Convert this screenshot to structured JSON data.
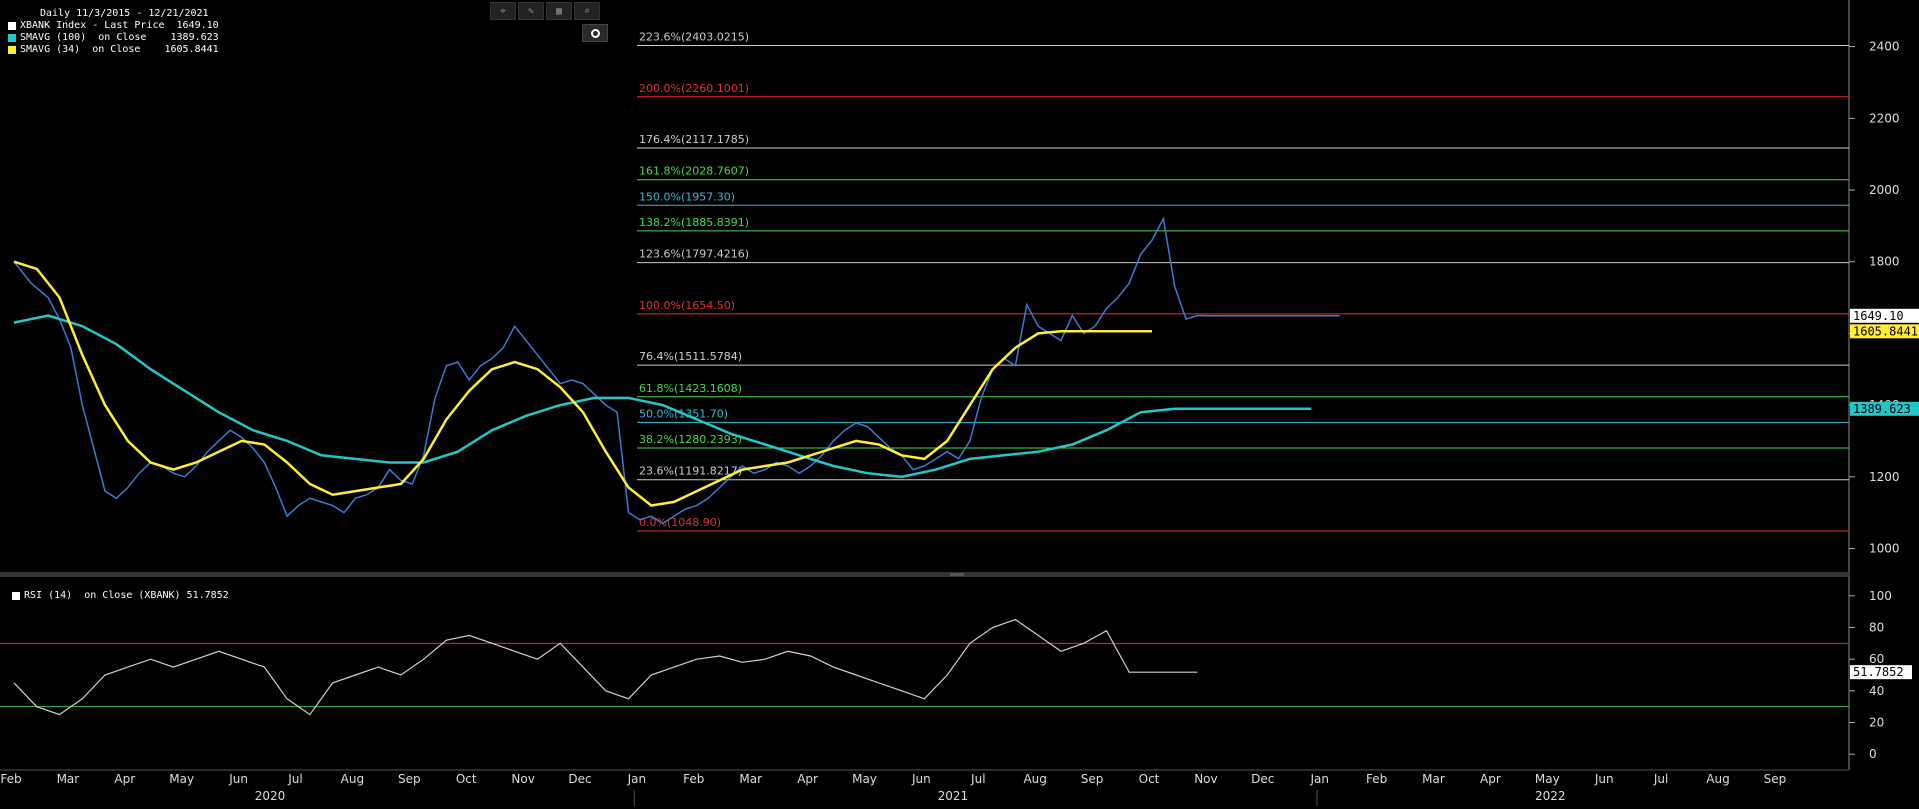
{
  "legend": {
    "title": "Daily 11/3/2015 - 12/21/2021",
    "items": [
      {
        "color": "#ffffff",
        "label": "XBANK Index - Last Price  1649.10"
      },
      {
        "color": "#22c7c9",
        "label": "SMAVG (100)  on Close    1389.623"
      },
      {
        "color": "#ffee33",
        "label": "SMAVG (34)  on Close    1605.8441"
      }
    ]
  },
  "toolbar": {
    "icons": [
      "crosshair-icon",
      "pen-icon",
      "chart-grid-icon",
      "magnifier-icon"
    ],
    "glyphs": [
      "⌖",
      "✎",
      "▦",
      "⌕"
    ],
    "camera_icon": "camera-icon"
  },
  "rsi_legend": "RSI (14)  on Close (XBANK) 51.7852",
  "chart_data": {
    "type": "line",
    "panels": [
      {
        "name": "price",
        "ylim": [
          940,
          2530
        ],
        "yticks": [
          1000,
          1200,
          1400,
          1600,
          1800,
          2000,
          2200,
          2400
        ],
        "price_labels": [
          {
            "value": 1649.1,
            "text": "1649.10",
            "bg": "#ffffff",
            "fg": "#000000"
          },
          {
            "value": 1605.8441,
            "text": "1605.8441",
            "bg": "#ffee33",
            "fg": "#000000"
          },
          {
            "value": 1389.623,
            "text": "1389.623",
            "bg": "#22c7c9",
            "fg": "#000000"
          }
        ],
        "fib_levels": [
          {
            "label": "223.6%(2403.0215)",
            "value": 2403.0215,
            "color": "#cccccc"
          },
          {
            "label": "200.0%(2260.1001)",
            "value": 2260.1001,
            "color": "#e03030"
          },
          {
            "label": "176.4%(2117.1785)",
            "value": 2117.1785,
            "color": "#cccccc"
          },
          {
            "label": "161.8%(2028.7607)",
            "value": 2028.7607,
            "color": "#44dd44"
          },
          {
            "label": "150.0%(1957.30)",
            "value": 1957.3,
            "color": "#33bbdd"
          },
          {
            "label": "138.2%(1885.8391)",
            "value": 1885.8391,
            "color": "#44dd44"
          },
          {
            "label": "123.6%(1797.4216)",
            "value": 1797.4216,
            "color": "#cccccc"
          },
          {
            "label": "100.0%(1654.50)",
            "value": 1654.5,
            "color": "#e03030"
          },
          {
            "label": "76.4%(1511.5784)",
            "value": 1511.5784,
            "color": "#cccccc"
          },
          {
            "label": "61.8%(1423.1608)",
            "value": 1423.1608,
            "color": "#44dd44"
          },
          {
            "label": "50.0%(1351.70)",
            "value": 1351.7,
            "color": "#33bbdd"
          },
          {
            "label": "38.2%(1280.2393)",
            "value": 1280.2393,
            "color": "#44dd44"
          },
          {
            "label": "23.6%(1191.8217)",
            "value": 1191.8217,
            "color": "#cccccc"
          },
          {
            "label": "0.0%(1048.90)",
            "value": 1048.9,
            "color": "#e03030"
          }
        ],
        "series": [
          {
            "name": "XBANK Index - Last Price",
            "color": "#3a7bd5",
            "x": [
              0,
              0.3,
              0.6,
              0.8,
              1.0,
              1.2,
              1.4,
              1.6,
              1.8,
              2.0,
              2.2,
              2.4,
              2.6,
              2.8,
              3.0,
              3.2,
              3.4,
              3.6,
              3.8,
              4.0,
              4.2,
              4.4,
              4.6,
              4.8,
              5.0,
              5.2,
              5.4,
              5.6,
              5.8,
              6.0,
              6.2,
              6.4,
              6.6,
              6.8,
              7.0,
              7.2,
              7.4,
              7.6,
              7.8,
              8.0,
              8.2,
              8.4,
              8.6,
              8.8,
              9.0,
              9.2,
              9.4,
              9.6,
              9.8,
              10.0,
              10.2,
              10.4,
              10.6,
              10.8,
              11.0,
              11.2,
              11.4,
              11.6,
              11.8,
              12.0,
              12.2,
              12.4,
              12.6,
              12.8,
              13.0,
              13.2,
              13.4,
              13.6,
              13.8,
              14.0,
              14.2,
              14.4,
              14.6,
              14.8,
              15.0,
              15.2,
              15.4,
              15.6,
              15.8,
              16.0,
              16.2,
              16.4,
              16.6,
              16.8,
              17.0,
              17.2,
              17.4,
              17.6,
              17.8,
              18.0,
              18.2,
              18.4,
              18.6,
              18.8,
              19.0,
              19.2,
              19.4,
              19.6,
              19.8,
              20.0,
              20.2,
              20.4,
              20.6,
              20.8,
              21.0,
              21.2,
              21.4,
              21.6,
              21.8,
              22.0,
              22.2,
              22.4,
              22.6,
              22.8,
              23.0,
              23.3
            ],
            "y": [
              1800,
              1740,
              1700,
              1640,
              1560,
              1400,
              1280,
              1160,
              1140,
              1170,
              1210,
              1240,
              1230,
              1210,
              1200,
              1230,
              1270,
              1300,
              1330,
              1310,
              1280,
              1240,
              1170,
              1090,
              1120,
              1140,
              1130,
              1120,
              1100,
              1140,
              1150,
              1170,
              1220,
              1190,
              1180,
              1260,
              1420,
              1510,
              1520,
              1470,
              1510,
              1530,
              1560,
              1620,
              1580,
              1540,
              1500,
              1460,
              1470,
              1460,
              1430,
              1400,
              1380,
              1100,
              1080,
              1090,
              1070,
              1090,
              1110,
              1120,
              1140,
              1170,
              1200,
              1230,
              1210,
              1220,
              1240,
              1230,
              1210,
              1230,
              1260,
              1300,
              1330,
              1350,
              1340,
              1310,
              1280,
              1260,
              1220,
              1230,
              1250,
              1270,
              1250,
              1300,
              1420,
              1500,
              1530,
              1510,
              1680,
              1620,
              1600,
              1580,
              1650,
              1600,
              1620,
              1670,
              1700,
              1740,
              1820,
              1860,
              1920,
              1730,
              1640,
              1650,
              1649.1,
              1649.1,
              1649.1,
              1649.1,
              1649.1,
              1649.1,
              1649.1,
              1649.1,
              1649.1,
              1649.1,
              1649.1,
              1649.1
            ]
          },
          {
            "name": "SMAVG (100)  on Close",
            "color": "#22c7c9",
            "x": [
              0,
              0.6,
              1.2,
              1.8,
              2.4,
              3.0,
              3.6,
              4.2,
              4.8,
              5.4,
              6.0,
              6.6,
              7.2,
              7.8,
              8.4,
              9.0,
              9.6,
              10.2,
              10.8,
              11.4,
              12.0,
              12.6,
              13.2,
              13.8,
              14.4,
              15.0,
              15.6,
              16.2,
              16.8,
              17.4,
              18.0,
              18.6,
              19.2,
              19.8,
              20.4,
              21.0,
              21.6,
              22.2,
              22.8
            ],
            "y": [
              1630,
              1650,
              1620,
              1570,
              1500,
              1440,
              1380,
              1330,
              1300,
              1260,
              1250,
              1240,
              1240,
              1270,
              1330,
              1370,
              1400,
              1420,
              1420,
              1400,
              1360,
              1320,
              1290,
              1260,
              1230,
              1210,
              1200,
              1220,
              1250,
              1260,
              1270,
              1290,
              1330,
              1380,
              1389.623,
              1389.623,
              1389.623,
              1389.623,
              1389.623
            ]
          },
          {
            "name": "SMAVG (34)  on Close",
            "color": "#ffee33",
            "x": [
              0,
              0.4,
              0.8,
              1.2,
              1.6,
              2.0,
              2.4,
              2.8,
              3.2,
              3.6,
              4.0,
              4.4,
              4.8,
              5.2,
              5.6,
              6.0,
              6.4,
              6.8,
              7.2,
              7.6,
              8.0,
              8.4,
              8.8,
              9.2,
              9.6,
              10.0,
              10.4,
              10.8,
              11.2,
              11.6,
              12.0,
              12.4,
              12.8,
              13.2,
              13.6,
              14.0,
              14.4,
              14.8,
              15.2,
              15.6,
              16.0,
              16.4,
              16.8,
              17.2,
              17.6,
              18.0,
              18.4,
              18.8,
              19.2,
              19.6,
              20.0
            ],
            "y": [
              1800,
              1780,
              1700,
              1540,
              1400,
              1300,
              1240,
              1220,
              1240,
              1270,
              1300,
              1290,
              1240,
              1180,
              1150,
              1160,
              1170,
              1180,
              1250,
              1360,
              1440,
              1500,
              1520,
              1500,
              1450,
              1380,
              1270,
              1170,
              1120,
              1130,
              1160,
              1190,
              1220,
              1230,
              1240,
              1260,
              1280,
              1300,
              1290,
              1260,
              1250,
              1300,
              1400,
              1500,
              1560,
              1600,
              1605.8441,
              1605.8441,
              1605.8441,
              1605.8441,
              1605.8441
            ]
          }
        ]
      },
      {
        "name": "rsi",
        "ylim": [
          -10,
          110
        ],
        "yticks": [
          0,
          20,
          40,
          60,
          80,
          100
        ],
        "overbought": 70,
        "oversold": 30,
        "value_label": {
          "value": 51.7852,
          "text": "51.7852",
          "bg": "#ffffff",
          "fg": "#000000"
        },
        "series": [
          {
            "name": "RSI (14) on Close (XBANK)",
            "color": "#d0d0d0",
            "x": [
              0,
              0.4,
              0.8,
              1.2,
              1.6,
              2.0,
              2.4,
              2.8,
              3.2,
              3.6,
              4.0,
              4.4,
              4.8,
              5.2,
              5.6,
              6.0,
              6.4,
              6.8,
              7.2,
              7.6,
              8.0,
              8.4,
              8.8,
              9.2,
              9.6,
              10.0,
              10.4,
              10.8,
              11.2,
              11.6,
              12.0,
              12.4,
              12.8,
              13.2,
              13.6,
              14.0,
              14.4,
              14.8,
              15.2,
              15.6,
              16.0,
              16.4,
              16.8,
              17.2,
              17.6,
              18.0,
              18.4,
              18.8,
              19.2,
              19.6,
              20.0,
              20.4,
              20.8
            ],
            "y": [
              45,
              30,
              25,
              35,
              50,
              55,
              60,
              55,
              60,
              65,
              60,
              55,
              35,
              25,
              45,
              50,
              55,
              50,
              60,
              72,
              75,
              70,
              65,
              60,
              70,
              55,
              40,
              35,
              50,
              55,
              60,
              62,
              58,
              60,
              65,
              62,
              55,
              50,
              45,
              40,
              35,
              50,
              70,
              80,
              85,
              75,
              65,
              70,
              78,
              51.7852,
              51.7852,
              51.7852,
              51.7852
            ]
          }
        ]
      }
    ],
    "x_axis": {
      "months": [
        "Feb",
        "Mar",
        "Apr",
        "May",
        "Jun",
        "Jul",
        "Aug",
        "Sep",
        "Oct",
        "Nov",
        "Dec",
        "Jan",
        "Feb",
        "Mar",
        "Apr",
        "May",
        "Jun",
        "Jul",
        "Aug",
        "Sep",
        "Oct",
        "Nov",
        "Dec",
        "Jan",
        "Feb",
        "Mar",
        "Apr",
        "May",
        "Jun",
        "Jul",
        "Aug",
        "Sep"
      ],
      "years": [
        "2020",
        "2021",
        "2022"
      ]
    }
  }
}
